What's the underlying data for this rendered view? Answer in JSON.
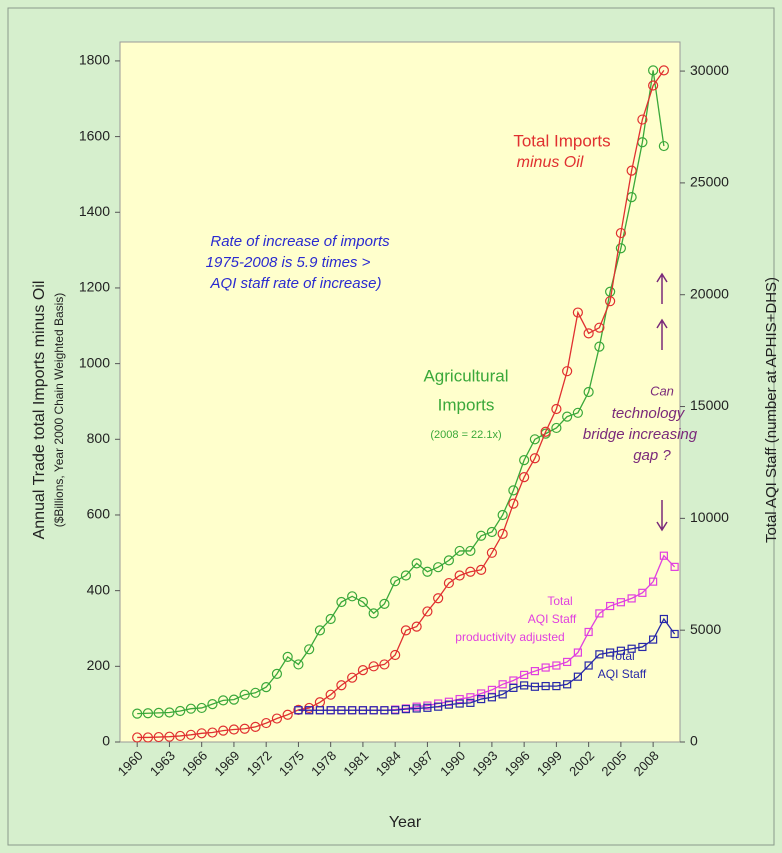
{
  "chart_data": {
    "type": "line",
    "xlabel": "Year",
    "ylabel": "Annual Trade total Imports minus Oil",
    "ylabel_sub": "($Billions, Year 2000 Chain Weighted Basis)",
    "y2label": "Total AQI Staff (number at APHIS+DHS)",
    "xlim": [
      1958.4,
      2010.5
    ],
    "xticks": [
      1960,
      1963,
      1966,
      1969,
      1972,
      1975,
      1978,
      1981,
      1984,
      1987,
      1990,
      1993,
      1996,
      1999,
      2002,
      2005,
      2008
    ],
    "ylim": [
      0,
      1850
    ],
    "yticks": [
      0,
      200,
      400,
      600,
      800,
      1000,
      1200,
      1400,
      1600,
      1800
    ],
    "y2lim": [
      0,
      31300
    ],
    "y2ticks": [
      0,
      5000,
      10000,
      15000,
      20000,
      25000,
      30000
    ],
    "annotations": [
      "Rate of increase of imports",
      "1975-2008 is 5.9 times >",
      "AQI staff rate of increase)",
      "Total Imports",
      "minus Oil",
      "Agricultural",
      "Imports",
      "(2008 = 22.1x)",
      "Can",
      "technology",
      "bridge increasing",
      "gap ?",
      "Total",
      "AQI Staff",
      "productivity adjusted",
      "Total",
      "AQI Staff"
    ],
    "series": [
      {
        "name": "Agricultural Imports",
        "color": "#3aa83a",
        "marker": "circle",
        "x": [
          1960,
          1961,
          1962,
          1963,
          1964,
          1965,
          1966,
          1967,
          1968,
          1969,
          1970,
          1971,
          1972,
          1973,
          1974,
          1975,
          1976,
          1977,
          1978,
          1979,
          1980,
          1981,
          1982,
          1983,
          1984,
          1985,
          1986,
          1987,
          1988,
          1989,
          1990,
          1991,
          1992,
          1993,
          1994,
          1995,
          1996,
          1997,
          1998,
          1999,
          2000,
          2001,
          2002,
          2003,
          2004,
          2005,
          2006,
          2007,
          2008,
          2009
        ],
        "values": [
          75,
          76,
          77,
          78,
          82,
          88,
          90,
          100,
          110,
          112,
          125,
          130,
          145,
          180,
          225,
          205,
          245,
          295,
          325,
          370,
          385,
          370,
          340,
          365,
          425,
          440,
          472,
          450,
          462,
          480,
          505,
          505,
          545,
          555,
          600,
          665,
          745,
          800,
          815,
          830,
          860,
          870,
          925,
          1045,
          1190,
          1305,
          1440,
          1585,
          1775,
          1575
        ]
      },
      {
        "name": "Total Imports minus Oil",
        "color": "#e03030",
        "marker": "circle",
        "x": [
          1960,
          1961,
          1962,
          1963,
          1964,
          1965,
          1966,
          1967,
          1968,
          1969,
          1970,
          1971,
          1972,
          1973,
          1974,
          1975,
          1976,
          1977,
          1978,
          1979,
          1980,
          1981,
          1982,
          1983,
          1984,
          1985,
          1986,
          1987,
          1988,
          1989,
          1990,
          1991,
          1992,
          1993,
          1994,
          1995,
          1996,
          1997,
          1998,
          1999,
          2000,
          2001,
          2002,
          2003,
          2004,
          2005,
          2006,
          2007,
          2008,
          2009
        ],
        "values": [
          12,
          12,
          13,
          14,
          16,
          19,
          23,
          25,
          30,
          33,
          35,
          40,
          50,
          62,
          72,
          85,
          90,
          105,
          125,
          150,
          170,
          190,
          200,
          205,
          230,
          295,
          305,
          345,
          380,
          420,
          440,
          450,
          455,
          500,
          550,
          630,
          700,
          750,
          820,
          880,
          980,
          1135,
          1080,
          1095,
          1165,
          1345,
          1510,
          1645,
          1735,
          1775
        ]
      },
      {
        "name": "Total AQI Staff productivity adjusted",
        "color": "#e040e0",
        "marker": "square",
        "axis": "y2",
        "x": [
          1975,
          1976,
          1977,
          1978,
          1979,
          1980,
          1981,
          1982,
          1983,
          1984,
          1985,
          1986,
          1987,
          1988,
          1989,
          1990,
          1991,
          1992,
          1993,
          1994,
          1995,
          1996,
          1997,
          1998,
          1999,
          2000,
          2001,
          2002,
          2003,
          2004,
          2005,
          2006,
          2007,
          2008,
          2009,
          2010
        ],
        "values": [
          1420,
          1420,
          1420,
          1420,
          1420,
          1420,
          1420,
          1420,
          1420,
          1450,
          1500,
          1580,
          1630,
          1720,
          1800,
          1920,
          2000,
          2170,
          2330,
          2580,
          2750,
          3000,
          3170,
          3330,
          3420,
          3580,
          4000,
          4920,
          5750,
          6080,
          6250,
          6420,
          6670,
          7170,
          8330,
          7830
        ]
      },
      {
        "name": "Total AQI Staff",
        "color": "#2828a8",
        "marker": "square",
        "axis": "y2",
        "x": [
          1975,
          1976,
          1977,
          1978,
          1979,
          1980,
          1981,
          1982,
          1983,
          1984,
          1985,
          1986,
          1987,
          1988,
          1989,
          1990,
          1991,
          1992,
          1993,
          1994,
          1995,
          1996,
          1997,
          1998,
          1999,
          2000,
          2001,
          2002,
          2003,
          2004,
          2005,
          2006,
          2007,
          2008,
          2009,
          2010
        ],
        "values": [
          1420,
          1420,
          1420,
          1420,
          1420,
          1420,
          1420,
          1420,
          1420,
          1420,
          1470,
          1500,
          1530,
          1580,
          1670,
          1720,
          1750,
          1920,
          2000,
          2130,
          2420,
          2530,
          2470,
          2500,
          2500,
          2580,
          2920,
          3420,
          3920,
          4000,
          4080,
          4170,
          4250,
          4580,
          5500,
          4830
        ]
      }
    ]
  }
}
